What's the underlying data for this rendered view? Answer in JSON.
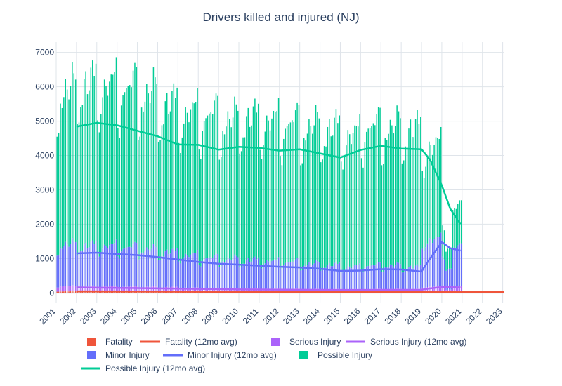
{
  "chart_data": {
    "type": "bar",
    "title": "Drivers killed and injured (NJ)",
    "xlabel": "",
    "ylabel": "",
    "barmode": "stack",
    "x_range": [
      "2001-01",
      "2023-02"
    ],
    "ylim": [
      -300,
      7300
    ],
    "y_ticks": [
      0,
      1000,
      2000,
      3000,
      4000,
      5000,
      6000,
      7000
    ],
    "x_ticks": [
      "2001",
      "2002",
      "2003",
      "2004",
      "2005",
      "2006",
      "2007",
      "2008",
      "2009",
      "2010",
      "2011",
      "2012",
      "2013",
      "2014",
      "2015",
      "2016",
      "2017",
      "2018",
      "2019",
      "2020",
      "2021",
      "2022",
      "2023"
    ],
    "grid": true,
    "legend_position": "bottom",
    "colors": {
      "Fatality": "#ef553b",
      "Serious Injury": "#ab63fa",
      "Minor Injury": "#636efa",
      "Possible Injury": "#00cc96"
    },
    "bars_yearly_avg": {
      "years": [
        2001,
        2002,
        2003,
        2004,
        2005,
        2006,
        2007,
        2008,
        2009,
        2010,
        2011,
        2012,
        2013,
        2014,
        2015,
        2016,
        2017,
        2018,
        2019,
        2020
      ],
      "Fatality": [
        45,
        44,
        42,
        42,
        40,
        38,
        35,
        33,
        30,
        29,
        29,
        28,
        28,
        27,
        27,
        28,
        28,
        28,
        28,
        30
      ],
      "Serious Injury": [
        150,
        145,
        140,
        135,
        130,
        125,
        110,
        100,
        95,
        90,
        85,
        85,
        80,
        80,
        75,
        80,
        80,
        80,
        150,
        140
      ],
      "Minor Injury": [
        1180,
        1160,
        1150,
        1120,
        1060,
        1000,
        930,
        870,
        840,
        810,
        780,
        770,
        720,
        690,
        640,
        670,
        670,
        620,
        1330,
        1100
      ],
      "Possible Injury": [
        4400,
        4620,
        4560,
        4560,
        4420,
        4200,
        4040,
        4080,
        3960,
        4030,
        3990,
        3960,
        3890,
        3870,
        3740,
        3970,
        3940,
        3910,
        2650,
        1100
      ]
    },
    "series": [
      {
        "name": "Fatality (12mo avg)",
        "x": [
          "2002-01",
          "2005-01",
          "2010-01",
          "2015-01",
          "2020-01",
          "2023-02"
        ],
        "values": [
          45,
          42,
          30,
          28,
          30,
          31
        ]
      },
      {
        "name": "Serious Injury (12mo avg)",
        "x": [
          "2002-01",
          "2005-01",
          "2010-01",
          "2015-01",
          "2019-01",
          "2019-06",
          "2020-01",
          "2020-12"
        ],
        "values": [
          160,
          140,
          100,
          85,
          90,
          130,
          170,
          160
        ]
      },
      {
        "name": "Minor Injury (12mo avg)",
        "x": [
          "2002-01",
          "2003-01",
          "2004-01",
          "2005-01",
          "2006-01",
          "2007-01",
          "2008-01",
          "2009-01",
          "2010-01",
          "2011-01",
          "2012-01",
          "2013-01",
          "2014-01",
          "2015-01",
          "2016-01",
          "2017-01",
          "2018-01",
          "2019-01",
          "2019-06",
          "2020-01",
          "2020-06",
          "2020-12"
        ],
        "values": [
          1150,
          1170,
          1130,
          1100,
          1040,
          970,
          900,
          850,
          820,
          790,
          760,
          740,
          700,
          640,
          650,
          690,
          680,
          620,
          1000,
          1480,
          1300,
          1230
        ]
      },
      {
        "name": "Possible Injury (12mo avg)",
        "x": [
          "2002-01",
          "2003-01",
          "2004-01",
          "2005-01",
          "2006-01",
          "2007-01",
          "2008-01",
          "2009-01",
          "2010-01",
          "2011-01",
          "2012-01",
          "2013-01",
          "2014-01",
          "2015-01",
          "2016-01",
          "2017-01",
          "2018-01",
          "2019-01",
          "2019-06",
          "2020-01",
          "2020-06",
          "2020-12"
        ],
        "values": [
          4840,
          4950,
          4880,
          4720,
          4560,
          4320,
          4310,
          4170,
          4250,
          4220,
          4140,
          4180,
          4060,
          3940,
          4160,
          4280,
          4200,
          4180,
          3880,
          3130,
          2450,
          2000
        ]
      }
    ],
    "legend": [
      {
        "label": "Fatality",
        "type": "bar",
        "color": "#ef553b"
      },
      {
        "label": "Fatality (12mo avg)",
        "type": "line",
        "color": "#ef553b"
      },
      {
        "label": "Serious Injury",
        "type": "bar",
        "color": "#ab63fa"
      },
      {
        "label": "Serious Injury (12mo avg)",
        "type": "line",
        "color": "#ab63fa"
      },
      {
        "label": "Minor Injury",
        "type": "bar",
        "color": "#636efa"
      },
      {
        "label": "Minor Injury (12mo avg)",
        "type": "line",
        "color": "#636efa"
      },
      {
        "label": "Possible Injury",
        "type": "bar",
        "color": "#00cc96"
      },
      {
        "label": "Possible Injury (12mo avg)",
        "type": "line",
        "color": "#00cc96"
      }
    ]
  }
}
